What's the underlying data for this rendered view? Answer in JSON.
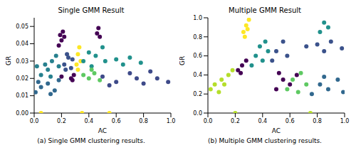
{
  "chart_data": [
    {
      "type": "scatter",
      "title": "Single GMM Result",
      "xlabel": "AC",
      "ylabel": "GR",
      "caption": "(a) Single GMM clustering results.",
      "xlim": [
        0,
        1
      ],
      "ylim": [
        0,
        0.055
      ],
      "xticks": [
        {
          "value": 0,
          "label": "0.0"
        },
        {
          "value": 0.2,
          "label": "0.2"
        },
        {
          "value": 0.4,
          "label": "0.4"
        },
        {
          "value": 0.6,
          "label": "0.6"
        },
        {
          "value": 0.8,
          "label": "0.8"
        },
        {
          "value": 1,
          "label": "1.0"
        }
      ],
      "yticks": [
        {
          "value": 0,
          "label": "0.00"
        },
        {
          "value": 0.01,
          "label": "0.01"
        },
        {
          "value": 0.02,
          "label": "0.02"
        },
        {
          "value": 0.03,
          "label": "0.03"
        },
        {
          "value": 0.04,
          "label": "0.04"
        },
        {
          "value": 0.05,
          "label": "0.05"
        }
      ],
      "series": [
        {
          "color": "#440154",
          "points": [
            [
              0.19,
              0.045
            ],
            [
              0.2,
              0.042
            ],
            [
              0.21,
              0.047
            ],
            [
              0.18,
              0.039
            ],
            [
              0.22,
              0.044
            ],
            [
              0.46,
              0.046
            ],
            [
              0.47,
              0.049
            ],
            [
              0.48,
              0.044
            ],
            [
              0.2,
              0.021
            ],
            [
              0.27,
              0.02
            ],
            [
              0.29,
              0.022
            ],
            [
              0.28,
              0.019
            ]
          ]
        },
        {
          "color": "#3b528b",
          "points": [
            [
              0.22,
              0.028
            ],
            [
              0.25,
              0.032
            ],
            [
              0.27,
              0.026
            ],
            [
              0.24,
              0.034
            ],
            [
              0.28,
              0.031
            ],
            [
              0.23,
              0.025
            ]
          ]
        },
        {
          "color": "#27808e",
          "points": [
            [
              0.05,
              0.022
            ],
            [
              0.1,
              0.025
            ],
            [
              0.13,
              0.03
            ],
            [
              0.16,
              0.033
            ],
            [
              0.18,
              0.027
            ],
            [
              0.12,
              0.021
            ],
            [
              0.08,
              0.028
            ],
            [
              0.02,
              0.027
            ]
          ]
        },
        {
          "color": "#31688e",
          "points": [
            [
              0.01,
              0.012
            ],
            [
              0.05,
              0.015
            ],
            [
              0.1,
              0.017
            ],
            [
              0.15,
              0.013
            ],
            [
              0.18,
              0.019
            ],
            [
              0.03,
              0.018
            ],
            [
              0.12,
              0.011
            ]
          ]
        },
        {
          "color": "#fde725",
          "points": [
            [
              0.31,
              0.028
            ],
            [
              0.32,
              0.034
            ],
            [
              0.33,
              0.038
            ],
            [
              0.34,
              0.03
            ],
            [
              0.32,
              0.025
            ],
            [
              0.05,
              0.0
            ],
            [
              0.35,
              0.0
            ],
            [
              0.55,
              0.0
            ]
          ]
        },
        {
          "color": "#21918c",
          "points": [
            [
              0.36,
              0.03
            ],
            [
              0.4,
              0.035
            ],
            [
              0.45,
              0.033
            ],
            [
              0.5,
              0.038
            ],
            [
              0.42,
              0.027
            ],
            [
              0.52,
              0.03
            ],
            [
              0.6,
              0.031
            ],
            [
              0.7,
              0.032
            ],
            [
              0.78,
              0.029
            ],
            [
              0.65,
              0.028
            ]
          ]
        },
        {
          "color": "#5ec962",
          "points": [
            [
              0.36,
              0.022
            ],
            [
              0.4,
              0.02
            ],
            [
              0.44,
              0.023
            ],
            [
              0.48,
              0.019
            ],
            [
              0.42,
              0.025
            ]
          ]
        },
        {
          "color": "#3e4a89",
          "points": [
            [
              0.5,
              0.021
            ],
            [
              0.6,
              0.018
            ],
            [
              0.7,
              0.023
            ],
            [
              0.8,
              0.017
            ],
            [
              0.9,
              0.02
            ],
            [
              0.98,
              0.018
            ],
            [
              0.55,
              0.016
            ],
            [
              0.85,
              0.024
            ],
            [
              0.75,
              0.02
            ]
          ]
        }
      ]
    },
    {
      "type": "scatter",
      "title": "Multiple GMM Result",
      "xlabel": "AC",
      "ylabel": "GR",
      "caption": "(b) Multiple GMM clustering results.",
      "xlim": [
        0,
        1
      ],
      "ylim": [
        0,
        1
      ],
      "xticks": [
        {
          "value": 0,
          "label": "0.0"
        },
        {
          "value": 0.2,
          "label": "0.2"
        },
        {
          "value": 0.4,
          "label": "0.4"
        },
        {
          "value": 0.6,
          "label": "0.6"
        },
        {
          "value": 0.8,
          "label": "0.8"
        },
        {
          "value": 1,
          "label": "1.0"
        }
      ],
      "yticks": [
        {
          "value": 0,
          "label": "0.0"
        },
        {
          "value": 0.2,
          "label": "0.2"
        },
        {
          "value": 0.4,
          "label": "0.4"
        },
        {
          "value": 0.6,
          "label": "0.6"
        },
        {
          "value": 0.8,
          "label": "0.8"
        },
        {
          "value": 1,
          "label": "1.0"
        }
      ],
      "series": [
        {
          "color": "#fde725",
          "points": [
            [
              0.26,
              0.85
            ],
            [
              0.28,
              0.92
            ],
            [
              0.3,
              0.98
            ],
            [
              0.27,
              0.8
            ],
            [
              0.29,
              0.88
            ]
          ]
        },
        {
          "color": "#b5de2b",
          "points": [
            [
              0.02,
              0.25
            ],
            [
              0.05,
              0.3
            ],
            [
              0.1,
              0.35
            ],
            [
              0.15,
              0.4
            ],
            [
              0.18,
              0.45
            ],
            [
              0.08,
              0.22
            ],
            [
              0.12,
              0.3
            ],
            [
              0.2,
              0.0
            ],
            [
              0.75,
              0.0
            ]
          ]
        },
        {
          "color": "#440154",
          "points": [
            [
              0.22,
              0.45
            ],
            [
              0.25,
              0.5
            ],
            [
              0.28,
              0.55
            ],
            [
              0.24,
              0.42
            ],
            [
              0.5,
              0.25
            ],
            [
              0.55,
              0.35
            ],
            [
              0.6,
              0.3
            ],
            [
              0.65,
              0.4
            ],
            [
              0.52,
              0.42
            ]
          ]
        },
        {
          "color": "#21918c",
          "points": [
            [
              0.32,
              0.5
            ],
            [
              0.35,
              0.6
            ],
            [
              0.38,
              0.7
            ],
            [
              0.42,
              0.75
            ],
            [
              0.4,
              0.55
            ],
            [
              0.44,
              0.65
            ],
            [
              0.82,
              0.85
            ],
            [
              0.85,
              0.95
            ],
            [
              0.88,
              0.9
            ]
          ]
        },
        {
          "color": "#3b528b",
          "points": [
            [
              0.47,
              0.55
            ],
            [
              0.5,
              0.65
            ],
            [
              0.55,
              0.75
            ],
            [
              0.58,
              0.6
            ],
            [
              0.72,
              0.7
            ],
            [
              0.8,
              0.72
            ],
            [
              0.9,
              0.75
            ],
            [
              0.98,
              0.68
            ],
            [
              0.85,
              0.65
            ]
          ]
        },
        {
          "color": "#5ec962",
          "points": [
            [
              0.58,
              0.25
            ],
            [
              0.62,
              0.35
            ],
            [
              0.68,
              0.42
            ],
            [
              0.72,
              0.3
            ],
            [
              0.66,
              0.22
            ]
          ]
        },
        {
          "color": "#31688e",
          "points": [
            [
              0.76,
              0.2
            ],
            [
              0.82,
              0.3
            ],
            [
              0.88,
              0.25
            ],
            [
              0.95,
              0.35
            ],
            [
              0.99,
              0.22
            ],
            [
              0.85,
              0.38
            ]
          ]
        }
      ]
    }
  ]
}
